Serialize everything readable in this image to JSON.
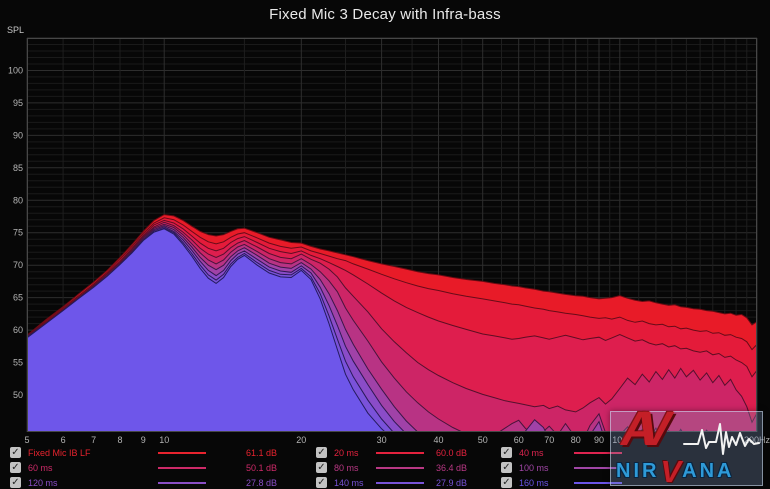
{
  "window": {
    "title": "Fixed Mic 3 Decay with Infra-bass"
  },
  "axes": {
    "spl_label": "SPL",
    "y_ticks": [
      100,
      95,
      90,
      85,
      80,
      75,
      70,
      65,
      60,
      55,
      50
    ],
    "x_ticks": [
      {
        "f": 5,
        "label": "5"
      },
      {
        "f": 6,
        "label": "6"
      },
      {
        "f": 7,
        "label": "7"
      },
      {
        "f": 8,
        "label": "8"
      },
      {
        "f": 9,
        "label": "9"
      },
      {
        "f": 10,
        "label": "10"
      },
      {
        "f": 20,
        "label": "20"
      },
      {
        "f": 30,
        "label": "30"
      },
      {
        "f": 40,
        "label": "40"
      },
      {
        "f": 50,
        "label": "50"
      },
      {
        "f": 60,
        "label": "60"
      },
      {
        "f": 70,
        "label": "70"
      },
      {
        "f": 80,
        "label": "80"
      },
      {
        "f": 90,
        "label": "90"
      },
      {
        "f": 100,
        "label": "100"
      },
      {
        "f": 200,
        "label": "200Hz"
      }
    ]
  },
  "chart_data": {
    "type": "area",
    "title": "Fixed Mic 3 Decay with Infra-bass",
    "xlabel": "Frequency (Hz, log scale)",
    "ylabel": "SPL (dB)",
    "xlim": [
      5,
      200
    ],
    "ylim": [
      44.3,
      105
    ],
    "x_scale": "log",
    "grid": true,
    "grid_major_hz": [
      5,
      10,
      20,
      30,
      40,
      50,
      60,
      70,
      80,
      90,
      100,
      200
    ],
    "grid_minor_hz": [
      6,
      7,
      8,
      9,
      15,
      25,
      35,
      45,
      55,
      65,
      75,
      85,
      95,
      110,
      120,
      130,
      140,
      150,
      160,
      170,
      180,
      190
    ],
    "x_hz": [
      5,
      5.5,
      6,
      6.5,
      7,
      7.5,
      8,
      8.5,
      9,
      9.5,
      10,
      10.5,
      11,
      11.5,
      12,
      12.5,
      13,
      13.5,
      14,
      14.5,
      15,
      16,
      17,
      18,
      19,
      20,
      21,
      22,
      23,
      24,
      25,
      26,
      28,
      30,
      32,
      34,
      36,
      38,
      40,
      43,
      46,
      50,
      53,
      56,
      58,
      60,
      62,
      65,
      68,
      70,
      73,
      76,
      80,
      83,
      86,
      90,
      93,
      96,
      100,
      104,
      108,
      112,
      116,
      120,
      124,
      128,
      132,
      136,
      140,
      145,
      150,
      155,
      160,
      165,
      170,
      175,
      180,
      185,
      190,
      195,
      200
    ],
    "series": [
      {
        "name": "Fixed Mic IB LF",
        "time_ms": 0,
        "color": "#e81b28",
        "stroke": "#6b0a12",
        "values": [
          59.2,
          61.6,
          63.6,
          65.6,
          67.4,
          69.2,
          71.2,
          73.2,
          75.2,
          76.9,
          77.8,
          77.6,
          76.9,
          76.0,
          75.2,
          74.7,
          74.5,
          74.7,
          75.2,
          75.6,
          75.7,
          75.0,
          74.3,
          73.9,
          73.5,
          73.4,
          72.9,
          72.5,
          72.2,
          71.9,
          71.6,
          71.3,
          70.7,
          70.2,
          69.8,
          69.4,
          69.0,
          68.7,
          68.5,
          68.1,
          67.8,
          67.5,
          67.2,
          67.0,
          66.8,
          66.7,
          66.5,
          66.3,
          66.0,
          65.9,
          65.7,
          65.5,
          65.3,
          65.2,
          65.0,
          64.8,
          64.9,
          65.0,
          65.3,
          64.9,
          64.6,
          64.4,
          64.5,
          64.2,
          64.0,
          63.8,
          63.9,
          63.6,
          63.5,
          63.3,
          63.2,
          63.0,
          62.9,
          62.7,
          62.5,
          62.6,
          62.3,
          62.4,
          61.9,
          60.8,
          61.3
        ]
      },
      {
        "name": "20 ms",
        "time_ms": 20,
        "color": "#e41b3a",
        "stroke": "#680b18",
        "values": [
          59.1,
          61.4,
          63.4,
          65.3,
          67.1,
          68.9,
          70.9,
          72.9,
          74.9,
          76.5,
          77.3,
          77.0,
          76.2,
          75.2,
          74.3,
          73.6,
          73.3,
          73.6,
          74.3,
          74.8,
          75.0,
          74.2,
          73.4,
          72.9,
          72.6,
          72.8,
          72.2,
          71.8,
          71.4,
          71.0,
          70.7,
          70.2,
          69.4,
          68.6,
          67.9,
          67.3,
          66.8,
          66.4,
          66.1,
          65.6,
          65.2,
          64.8,
          64.5,
          64.2,
          64.0,
          63.9,
          63.7,
          63.4,
          63.2,
          63.0,
          62.8,
          62.6,
          62.4,
          62.2,
          62.0,
          61.8,
          61.9,
          61.7,
          62.0,
          61.5,
          61.2,
          61.4,
          61.0,
          60.8,
          60.9,
          60.5,
          60.6,
          60.2,
          60.3,
          60.0,
          59.8,
          59.9,
          59.5,
          59.6,
          59.2,
          59.3,
          58.9,
          58.7,
          58.2,
          57.0,
          57.8
        ]
      },
      {
        "name": "40 ms",
        "time_ms": 40,
        "color": "#de1e4e",
        "stroke": "#5f0d22",
        "values": [
          59.1,
          61.2,
          63.2,
          65.1,
          66.9,
          68.7,
          70.6,
          72.6,
          74.6,
          76.2,
          76.9,
          76.5,
          75.6,
          74.5,
          73.4,
          72.6,
          72.2,
          72.6,
          73.5,
          74.1,
          74.4,
          73.5,
          72.6,
          72.1,
          71.8,
          72.2,
          71.5,
          71.0,
          70.4,
          69.8,
          69.2,
          68.5,
          67.1,
          65.7,
          64.5,
          63.5,
          62.7,
          62.0,
          61.4,
          60.7,
          60.1,
          59.4,
          59.1,
          58.8,
          58.6,
          58.7,
          58.9,
          59.1,
          58.8,
          58.6,
          58.9,
          59.2,
          58.8,
          58.5,
          58.7,
          58.9,
          58.4,
          58.8,
          59.3,
          58.8,
          58.3,
          58.5,
          58.0,
          57.7,
          57.9,
          57.4,
          57.6,
          57.1,
          57.2,
          56.8,
          56.6,
          56.8,
          56.2,
          56.4,
          55.8,
          56.0,
          55.4,
          55.0,
          54.4,
          52.8,
          53.8
        ]
      },
      {
        "name": "60 ms",
        "time_ms": 60,
        "color": "#cd2566",
        "stroke": "#55102e",
        "values": [
          59.0,
          61.1,
          63.1,
          65.0,
          66.8,
          68.6,
          70.4,
          72.4,
          74.4,
          75.9,
          76.6,
          76.1,
          75.1,
          73.9,
          72.6,
          71.7,
          71.2,
          71.7,
          72.7,
          73.4,
          73.8,
          72.8,
          71.8,
          71.2,
          71.0,
          71.7,
          70.9,
          70.3,
          69.4,
          68.2,
          66.5,
          65.2,
          62.8,
          60.2,
          58.2,
          56.5,
          55.0,
          53.9,
          53.0,
          51.9,
          51.0,
          50.1,
          49.6,
          49.1,
          48.9,
          48.7,
          48.5,
          48.2,
          48.4,
          47.9,
          48.3,
          47.7,
          47.4,
          48.0,
          48.8,
          49.6,
          48.6,
          49.4,
          51.0,
          52.6,
          51.6,
          53.2,
          52.0,
          53.6,
          52.4,
          53.9,
          52.6,
          54.1,
          52.8,
          53.8,
          52.3,
          53.4,
          51.9,
          53.0,
          51.5,
          52.4,
          50.8,
          49.8,
          48.2,
          45.8,
          47.2
        ]
      },
      {
        "name": "80 ms",
        "time_ms": 80,
        "color": "#b83384",
        "stroke": "#48143c",
        "values": [
          59.0,
          61.0,
          63.0,
          64.9,
          66.7,
          68.4,
          70.2,
          72.2,
          74.2,
          75.7,
          76.3,
          75.8,
          74.7,
          73.3,
          71.9,
          70.8,
          70.2,
          70.8,
          72.0,
          72.8,
          73.2,
          72.1,
          71.0,
          70.4,
          70.2,
          71.0,
          70.1,
          69.0,
          67.6,
          65.9,
          63.4,
          61.5,
          58.3,
          55.1,
          52.6,
          50.5,
          48.8,
          47.4,
          46.3,
          45.0,
          44.0,
          43.2,
          43.8,
          44.9,
          45.6,
          46.1,
          44.9,
          43.6,
          44.4,
          45.2,
          43.8,
          45.6,
          43.4,
          43.0,
          45.3,
          47.1,
          44.2,
          43.4,
          43.8,
          45.1,
          43.4,
          44.7,
          43.2,
          44.9,
          43.3,
          44.5,
          43.1,
          44.7,
          43.3,
          44.4,
          43.0,
          44.6,
          43.2,
          44.2,
          43.0,
          44.4,
          43.1,
          43.8,
          42.8,
          42.5,
          43.0
        ]
      },
      {
        "name": "100 ms",
        "time_ms": 100,
        "color": "#a042a8",
        "stroke": "#3b1648",
        "values": [
          58.9,
          60.9,
          62.9,
          64.8,
          66.6,
          68.3,
          70.1,
          72.0,
          74.0,
          75.5,
          76.1,
          75.5,
          74.3,
          72.8,
          71.2,
          70.0,
          69.3,
          70.0,
          71.3,
          72.2,
          72.7,
          71.5,
          70.3,
          69.7,
          69.5,
          70.4,
          69.4,
          67.8,
          65.6,
          63.0,
          60.1,
          57.8,
          54.0,
          50.9,
          48.2,
          46.0,
          44.3,
          43.0,
          42.2,
          42.0,
          42.0,
          42.0,
          42.0,
          42.0,
          42.3,
          43.2,
          44.4,
          46.2,
          45.0,
          43.2,
          42.4,
          43.6,
          42.2,
          42.0,
          43.8,
          45.9,
          42.8,
          42.0,
          42.0,
          42.6,
          42.0,
          42.0,
          42.0,
          42.8,
          42.0,
          42.0,
          42.0,
          43.0,
          42.0,
          42.4,
          42.0,
          43.0,
          42.0,
          42.0,
          42.0,
          42.6,
          42.0,
          42.0,
          42.0,
          42.0,
          42.0
        ]
      },
      {
        "name": "120 ms",
        "time_ms": 120,
        "color": "#8a4cc8",
        "stroke": "#2f1852",
        "values": [
          58.9,
          60.8,
          62.8,
          64.7,
          66.5,
          68.2,
          70.0,
          71.9,
          73.8,
          75.3,
          75.9,
          75.2,
          73.9,
          72.3,
          70.6,
          69.2,
          68.4,
          69.2,
          70.7,
          71.7,
          72.2,
          70.9,
          69.7,
          69.1,
          68.9,
          69.9,
          68.8,
          66.6,
          63.8,
          60.7,
          57.5,
          55.2,
          51.6,
          48.4,
          45.9,
          44.0,
          42.8,
          42.1,
          42.0,
          42.0,
          42.0,
          42.0,
          42.0,
          42.0,
          42.0,
          42.0,
          42.0,
          42.0,
          42.0,
          42.0,
          42.0,
          42.0,
          42.0,
          42.0,
          42.0,
          42.0,
          42.0,
          42.0,
          42.0,
          42.0,
          42.0,
          42.0,
          42.0,
          42.0,
          42.0,
          42.0,
          42.0,
          42.0,
          42.0,
          42.0,
          42.0,
          42.0,
          42.0,
          42.0,
          42.0,
          42.0,
          42.0,
          42.0,
          42.0,
          42.0,
          42.0
        ]
      },
      {
        "name": "140 ms",
        "time_ms": 140,
        "color": "#7a52da",
        "stroke": "#281a58",
        "values": [
          58.8,
          60.8,
          62.7,
          64.6,
          66.4,
          68.1,
          69.9,
          71.7,
          73.7,
          75.1,
          75.7,
          75.0,
          73.5,
          71.8,
          70.0,
          68.5,
          67.7,
          68.6,
          70.2,
          71.2,
          71.8,
          70.4,
          69.2,
          68.6,
          68.5,
          69.5,
          68.2,
          65.6,
          62.2,
          58.6,
          55.2,
          52.8,
          49.2,
          46.3,
          44.1,
          42.6,
          42.0,
          42.0,
          42.0,
          42.0,
          42.0,
          42.0,
          42.0,
          42.0,
          42.0,
          42.0,
          42.0,
          42.0,
          42.0,
          42.0,
          42.0,
          42.0,
          42.0,
          42.0,
          42.0,
          42.0,
          42.0,
          42.0,
          42.0,
          42.0,
          42.0,
          42.0,
          42.0,
          42.0,
          42.0,
          42.0,
          42.0,
          42.0,
          42.0,
          42.0,
          42.0,
          42.0,
          42.0,
          42.0,
          42.0,
          42.0,
          42.0,
          42.0,
          42.0,
          42.0,
          42.0
        ]
      },
      {
        "name": "160 ms",
        "time_ms": 160,
        "color": "#6e56ea",
        "stroke": "#231b5e",
        "values": [
          58.8,
          61.0,
          63.0,
          64.9,
          66.6,
          68.3,
          70.1,
          71.9,
          73.8,
          75.1,
          75.6,
          74.8,
          73.2,
          71.4,
          69.5,
          68.0,
          67.2,
          68.1,
          69.8,
          70.9,
          71.5,
          70.0,
          68.8,
          68.2,
          68.1,
          69.2,
          67.8,
          64.8,
          61.0,
          57.0,
          53.2,
          50.8,
          47.2,
          44.8,
          43.0,
          42.2,
          42.0,
          42.0,
          42.0,
          42.0,
          42.0,
          42.0,
          42.0,
          42.0,
          42.0,
          42.0,
          42.0,
          42.0,
          42.0,
          42.0,
          42.0,
          42.0,
          42.0,
          42.0,
          42.0,
          42.0,
          42.0,
          42.0,
          42.0,
          42.0,
          42.0,
          42.0,
          42.0,
          42.0,
          42.0,
          42.0,
          42.0,
          42.0,
          42.0,
          42.0,
          42.0,
          42.0,
          42.0,
          42.0,
          42.0,
          42.0,
          42.0,
          42.0,
          42.0,
          42.0,
          42.0
        ]
      }
    ]
  },
  "legend": {
    "entries": [
      {
        "label": "Fixed Mic IB LF",
        "value": "61.1 dB",
        "color": "#e8232e",
        "checked": true,
        "col": 0,
        "row": 0
      },
      {
        "label": "60 ms",
        "value": "50.1 dB",
        "color": "#cd2a68",
        "checked": true,
        "col": 0,
        "row": 1
      },
      {
        "label": "120 ms",
        "value": "27.8 dB",
        "color": "#8a4ec6",
        "checked": true,
        "col": 0,
        "row": 2
      },
      {
        "label": "20 ms",
        "value": "60.0 dB",
        "color": "#e4223e",
        "checked": true,
        "col": 1,
        "row": 0
      },
      {
        "label": "80 ms",
        "value": "36.4 dB",
        "color": "#b83884",
        "checked": true,
        "col": 1,
        "row": 1
      },
      {
        "label": "140 ms",
        "value": "27.9 dB",
        "color": "#7853d8",
        "checked": true,
        "col": 1,
        "row": 2
      },
      {
        "label": "40 ms",
        "value": "",
        "color": "#de2450",
        "checked": true,
        "col": 2,
        "row": 0
      },
      {
        "label": "100 ms",
        "value": "",
        "color": "#a046a6",
        "checked": true,
        "col": 2,
        "row": 1
      },
      {
        "label": "160 ms",
        "value": "",
        "color": "#6b55e8",
        "checked": true,
        "col": 2,
        "row": 2
      }
    ]
  },
  "watermark": {
    "av": "AV",
    "nir": "NIR",
    "v": "V",
    "ana": "ANA"
  }
}
